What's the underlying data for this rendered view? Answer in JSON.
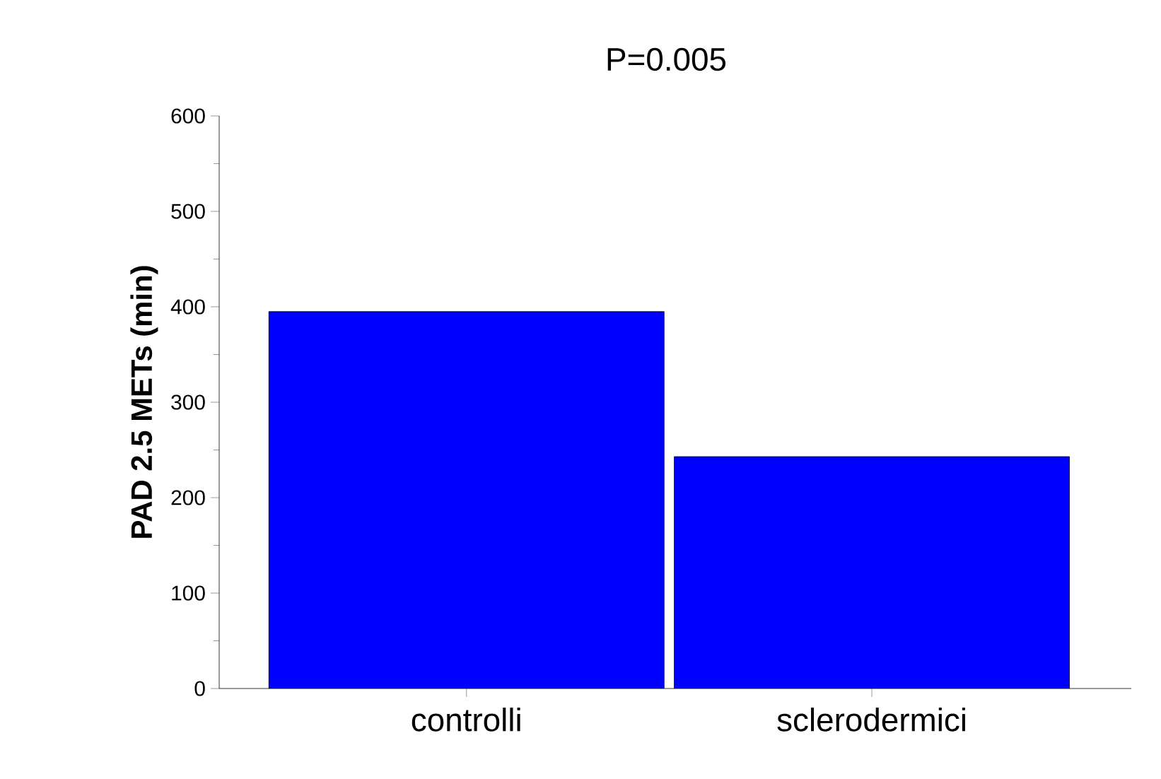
{
  "chart_data": {
    "type": "bar",
    "title": "P=0.005",
    "ylabel": "PAD 2.5 METs (min)",
    "categories": [
      "controlli",
      "sclerodermici"
    ],
    "values": [
      395,
      243
    ],
    "color": "#0000ff",
    "ylim": [
      0,
      600
    ],
    "yticks": [
      0,
      100,
      200,
      300,
      400,
      500,
      600
    ],
    "grid": false
  }
}
